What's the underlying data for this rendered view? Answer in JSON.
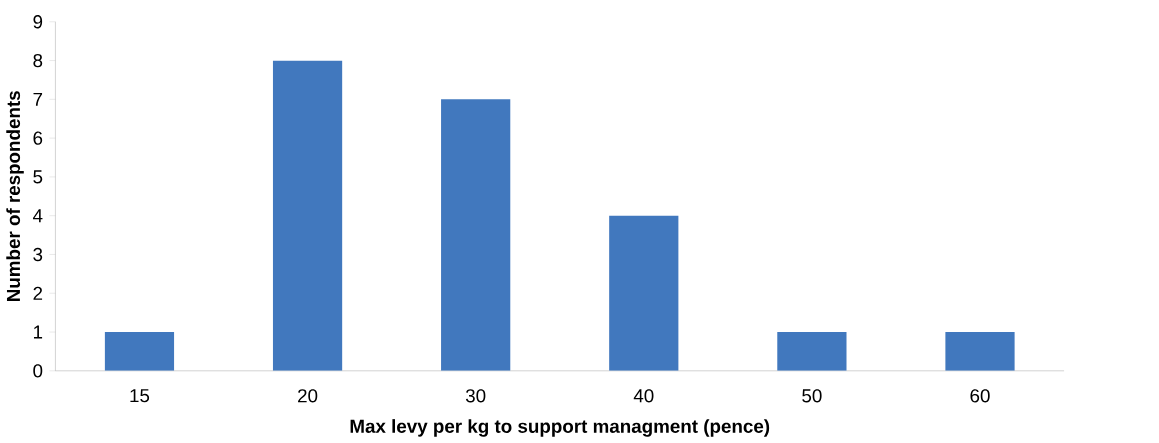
{
  "chart_data": {
    "type": "bar",
    "xlabel": "Max levy per kg to support managment (pence)",
    "ylabel": "Number of respondents",
    "categories": [
      "15",
      "20",
      "30",
      "40",
      "50",
      "60"
    ],
    "values": [
      1,
      8,
      7,
      4,
      1,
      1
    ],
    "color": "#4178be",
    "ylim": [
      0,
      9
    ],
    "yticks": [
      0,
      1,
      2,
      3,
      4,
      5,
      6,
      7,
      8,
      9
    ]
  }
}
